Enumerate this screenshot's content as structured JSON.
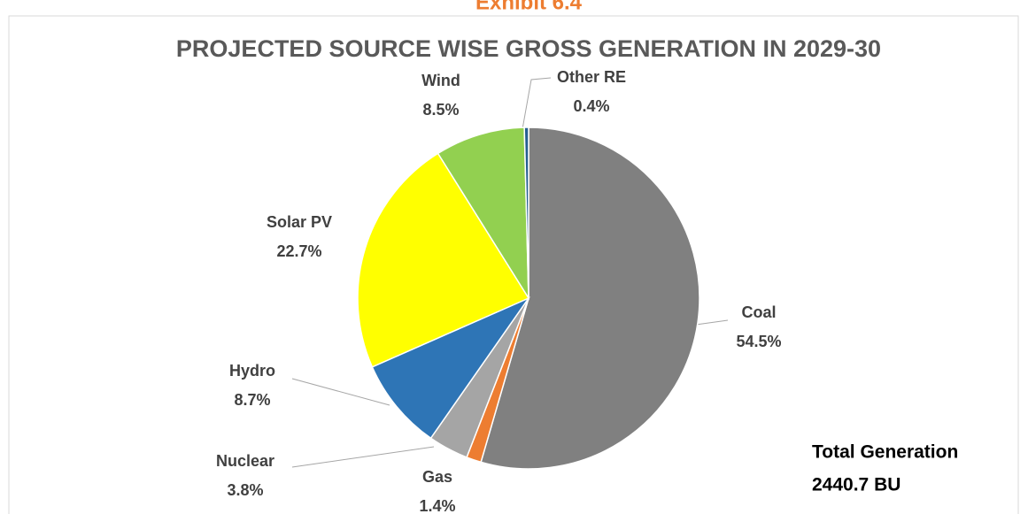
{
  "header": "Exhibit 6.4",
  "chart_data": {
    "type": "pie",
    "title": "PROJECTED SOURCE WISE GROSS GENERATION IN 2029-30",
    "categories": [
      "Coal",
      "Gas",
      "Nuclear",
      "Hydro",
      "Solar PV",
      "Wind",
      "Other RE"
    ],
    "values": [
      54.5,
      1.4,
      3.8,
      8.7,
      22.7,
      8.5,
      0.4
    ],
    "value_labels": [
      "54.5%",
      "1.4%",
      "3.8%",
      "8.7%",
      "22.7%",
      "8.5%",
      "0.4%"
    ],
    "colors": [
      "#808080",
      "#ed7d31",
      "#a5a5a5",
      "#2e75b6",
      "#ffff00",
      "#92d050",
      "#255e91"
    ],
    "annotation": [
      "Total Generation",
      "2440.7 BU"
    ]
  }
}
